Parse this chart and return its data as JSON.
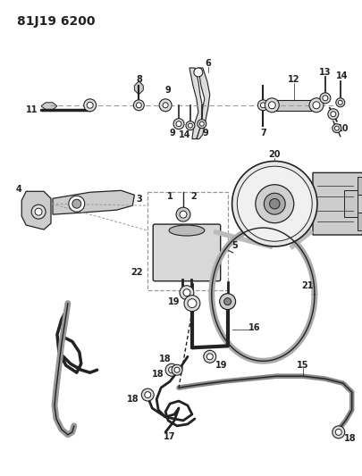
{
  "title": "81J19 6200",
  "bg_color": "#ffffff",
  "line_color": "#222222",
  "dashed_color": "#999999",
  "title_fontsize": 10,
  "label_fontsize": 7,
  "fig_width": 4.06,
  "fig_height": 5.33,
  "dpi": 100
}
